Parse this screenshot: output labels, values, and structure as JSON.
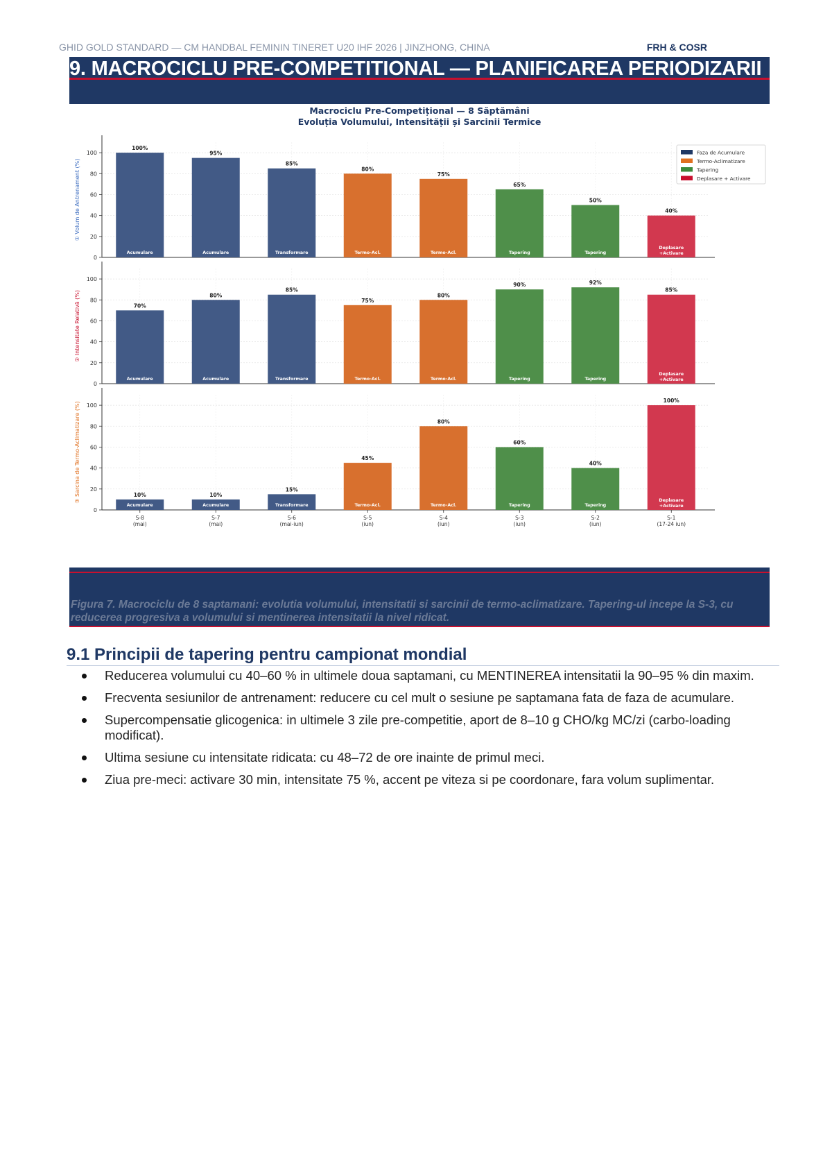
{
  "header": {
    "left": "GHID GOLD STANDARD — CM HANDBAL FEMININ TINERET U20 IHF 2026  |  JINZHONG, CHINA",
    "right": "FRH & COSR"
  },
  "section": {
    "title": "9. MACROCICLU PRE-COMPETITIONAL — PLANIFICAREA PERIODIZARII"
  },
  "chart_data": {
    "type": "bar",
    "title": "Macrociclu Pre-Competițional — 8 Săptămâni",
    "subtitle": "Evoluția Volumului, Intensității și Sarcinii Termice",
    "categories": [
      "S-8",
      "S-7",
      "S-6",
      "S-5",
      "S-4",
      "S-3",
      "S-2",
      "S-1"
    ],
    "category_notes": [
      "(mai)",
      "(mai)",
      "(mai-iun)",
      "(iun)",
      "(iun)",
      "(iun)",
      "(iun)",
      "(17-24 iun)"
    ],
    "phase_labels": [
      "Acumulare",
      "Acumulare",
      "Transformare",
      "Termo-Acl.",
      "Termo-Acl.",
      "Tapering",
      "Tapering",
      "Deplasare +Activare"
    ],
    "phase_colors": [
      "#425a86",
      "#425a86",
      "#425a86",
      "#d8702e",
      "#d8702e",
      "#4f8f4a",
      "#4f8f4a",
      "#d2384f"
    ],
    "legend": {
      "placement": "top-right",
      "items": [
        {
          "label": "Faza de Acumulare",
          "color": "#1f3864"
        },
        {
          "label": "Termo-Aclimatizare",
          "color": "#e07020"
        },
        {
          "label": "Tapering",
          "color": "#3c8a3c"
        },
        {
          "label": "Deplasare + Activare",
          "color": "#c8102e"
        }
      ]
    },
    "grid": true,
    "panels": [
      {
        "ylabel": "① Volum de Antrenament (%)",
        "ylabel_color": "#3a6bbf",
        "ylim": [
          0,
          110
        ],
        "yticks": [
          0,
          20,
          40,
          60,
          80,
          100
        ],
        "values": [
          100,
          95,
          85,
          80,
          75,
          65,
          50,
          40
        ],
        "value_labels": [
          "100%",
          "95%",
          "85%",
          "80%",
          "75%",
          "65%",
          "50%",
          "40%"
        ]
      },
      {
        "ylabel": "② Intensitate Relativă (%)",
        "ylabel_color": "#c8102e",
        "ylim": [
          0,
          110
        ],
        "yticks": [
          0,
          20,
          40,
          60,
          80,
          100
        ],
        "values": [
          70,
          80,
          85,
          75,
          80,
          90,
          92,
          85
        ],
        "value_labels": [
          "70%",
          "80%",
          "85%",
          "75%",
          "80%",
          "90%",
          "92%",
          "85%"
        ]
      },
      {
        "ylabel": "③ Sarcina de Termo-Aclimatizare (%)",
        "ylabel_color": "#e07020",
        "ylim": [
          0,
          110
        ],
        "yticks": [
          0,
          20,
          40,
          60,
          80,
          100
        ],
        "values": [
          10,
          10,
          15,
          45,
          80,
          60,
          40,
          100
        ],
        "value_labels": [
          "10%",
          "10%",
          "15%",
          "45%",
          "80%",
          "60%",
          "40%",
          "100%"
        ]
      }
    ]
  },
  "figure": {
    "caption": "Figura 7. Macrociclu de 8 saptamani: evolutia volumului, intensitatii si sarcinii de termo-aclimatizare. Tapering-ul incepe la S-3, cu reducerea progresiva a volumului si mentinerea intensitatii la nivel ridicat."
  },
  "subsection": {
    "title": "9.1 Principii de tapering pentru campionat mondial",
    "bullets": [
      "Reducerea volumului cu 40–60 % in ultimele doua saptamani, cu MENTINEREA intensitatii la 90–95 % din maxim.",
      "Frecventa sesiunilor de antrenament: reducere cu cel mult o sesiune pe saptamana fata de faza de acumulare.",
      "Supercompensatie glicogenica: in ultimele 3 zile pre-competitie, aport de 8–10 g CHO/kg MC/zi (carbo-loading modificat).",
      "Ultima sesiune cu intensitate ridicata: cu 48–72 de ore inainte de primul meci.",
      "Ziua pre-meci: activare 30 min, intensitate 75 %, accent pe viteza si pe coordonare, fara volum suplimentar."
    ]
  }
}
